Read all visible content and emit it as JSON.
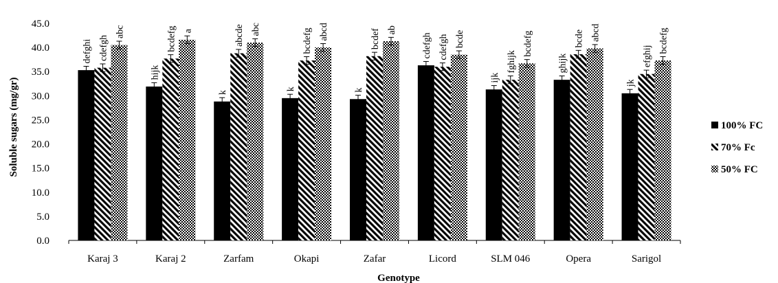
{
  "chart_data": {
    "type": "bar",
    "xlabel": "Genotype",
    "ylabel": "Soluble sugars (mg/gr)",
    "ylim": [
      0,
      45
    ],
    "yticks": [
      "0.0",
      "5.0",
      "10.0",
      "15.0",
      "20.0",
      "25.0",
      "30.0",
      "35.0",
      "40.0",
      "45.0"
    ],
    "ytick_values": [
      0,
      5,
      10,
      15,
      20,
      25,
      30,
      35,
      40,
      45
    ],
    "grid": false,
    "legend_position": "right",
    "categories": [
      "Karaj 3",
      "Karaj 2",
      "Zarfam",
      "Okapi",
      "Zafar",
      "Licord",
      "SLM 046",
      "Opera",
      "Sarigol"
    ],
    "series": [
      {
        "name": "100% FC",
        "pattern": "solid",
        "color": "#000000",
        "values": [
          35.3,
          31.9,
          28.8,
          29.5,
          29.3,
          36.3,
          31.3,
          33.3,
          30.5
        ],
        "errors": [
          0.8,
          0.8,
          0.8,
          0.8,
          0.8,
          0.8,
          0.8,
          0.8,
          0.8
        ],
        "letters": [
          "defghi",
          "hijk",
          "k",
          "k",
          "k",
          "cdefgh",
          "ijk",
          "ghijk",
          "jk"
        ]
      },
      {
        "name": "70% Fc",
        "pattern": "diagonal",
        "color": "#000000",
        "values": [
          35.8,
          37.7,
          38.8,
          37.3,
          38.2,
          36.0,
          33.3,
          38.6,
          34.5
        ],
        "errors": [
          0.8,
          0.8,
          0.8,
          0.8,
          0.8,
          0.8,
          0.8,
          0.8,
          0.8
        ],
        "letters": [
          "cdefgh",
          "bcdefg",
          "abcde",
          "bcdefg",
          "bcdef",
          "cdefgh",
          "fghijk",
          "bcde",
          "efghij"
        ]
      },
      {
        "name": "50% FC",
        "pattern": "checker",
        "color": "#000000",
        "values": [
          40.5,
          41.6,
          41.0,
          40.0,
          41.3,
          38.5,
          36.7,
          39.8,
          37.3
        ],
        "errors": [
          0.8,
          0.8,
          0.8,
          0.8,
          0.8,
          0.8,
          0.8,
          0.8,
          0.8
        ],
        "letters": [
          "abc",
          "a",
          "abc",
          "abcd",
          "ab",
          "bcde",
          "bcdefg",
          "abcd",
          "bcdefg"
        ]
      }
    ]
  }
}
